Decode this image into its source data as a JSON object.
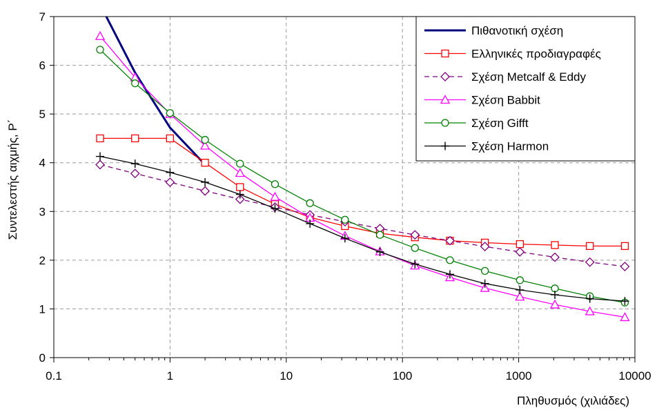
{
  "chart_data": {
    "type": "line",
    "title": "",
    "xlabel": "Πληθυσμός (χιλιάδες)",
    "ylabel": "Συντελεστής αιχμής, P΄",
    "xscale": "log",
    "xlim": [
      0.1,
      10000
    ],
    "ylim": [
      0,
      7
    ],
    "grid": true,
    "legend_position": "top-right",
    "x_tick_labels": [
      "0.1",
      "1",
      "10",
      "100",
      "1000",
      "10000"
    ],
    "x_ticks": [
      0.1,
      1,
      10,
      100,
      1000,
      10000
    ],
    "y_ticks": [
      0,
      1,
      2,
      3,
      4,
      5,
      6,
      7
    ],
    "y_tick_labels": [
      "0",
      "1",
      "2",
      "3",
      "4",
      "5",
      "6",
      "7"
    ],
    "series": [
      {
        "name": "Πιθανοτική σχέση",
        "color": "#000080",
        "marker": "none",
        "dash": "solid",
        "x": [
          0.25,
          0.5,
          1,
          2
        ],
        "y": [
          7.25,
          5.85,
          4.72,
          3.96
        ]
      },
      {
        "name": "Ελληνικές προδιαγραφές",
        "color": "#ff0000",
        "marker": "square",
        "dash": "solid",
        "x": [
          0.25,
          0.5,
          1,
          2,
          4,
          8,
          16,
          32,
          64,
          128,
          256,
          512,
          1024,
          2048,
          4096,
          8192
        ],
        "y": [
          4.5,
          4.5,
          4.5,
          4.0,
          3.5,
          3.15,
          2.88,
          2.7,
          2.55,
          2.47,
          2.4,
          2.36,
          2.33,
          2.31,
          2.29,
          2.29
        ]
      },
      {
        "name": "Σχέση Metcalf & Eddy",
        "color": "#800080",
        "marker": "diamond",
        "dash": "dashed",
        "x": [
          0.25,
          0.5,
          1,
          2,
          4,
          8,
          16,
          32,
          64,
          128,
          256,
          512,
          1024,
          2048,
          4096,
          8192
        ],
        "y": [
          3.96,
          3.78,
          3.6,
          3.42,
          3.25,
          3.09,
          2.93,
          2.79,
          2.65,
          2.52,
          2.4,
          2.28,
          2.17,
          2.06,
          1.96,
          1.87
        ]
      },
      {
        "name": "Σχέση Babbit",
        "color": "#ff00ff",
        "marker": "triangle",
        "dash": "solid",
        "x": [
          0.25,
          0.5,
          1,
          2,
          4,
          8,
          16,
          32,
          64,
          128,
          256,
          512,
          1024,
          2048,
          4096,
          8192
        ],
        "y": [
          6.6,
          5.75,
          5.0,
          4.35,
          3.79,
          3.3,
          2.87,
          2.5,
          2.18,
          1.89,
          1.65,
          1.43,
          1.25,
          1.09,
          0.95,
          0.83
        ]
      },
      {
        "name": "Σχέση Gifft",
        "color": "#008000",
        "marker": "circle",
        "dash": "solid",
        "x": [
          0.25,
          0.5,
          1,
          2,
          4,
          8,
          16,
          32,
          64,
          128,
          256,
          512,
          1024,
          2048,
          4096,
          8192
        ],
        "y": [
          6.32,
          5.63,
          5.02,
          4.47,
          3.98,
          3.56,
          3.17,
          2.83,
          2.52,
          2.25,
          2.0,
          1.78,
          1.59,
          1.42,
          1.26,
          1.13
        ]
      },
      {
        "name": "Σχέση Harmon",
        "color": "#000000",
        "marker": "plus",
        "dash": "solid",
        "x": [
          0.25,
          0.5,
          1,
          2,
          4,
          8,
          16,
          32,
          64,
          128,
          256,
          512,
          1024,
          2048,
          4096,
          8192
        ],
        "y": [
          4.13,
          3.98,
          3.8,
          3.6,
          3.35,
          3.06,
          2.75,
          2.45,
          2.17,
          1.92,
          1.71,
          1.52,
          1.39,
          1.29,
          1.21,
          1.16
        ]
      }
    ]
  }
}
